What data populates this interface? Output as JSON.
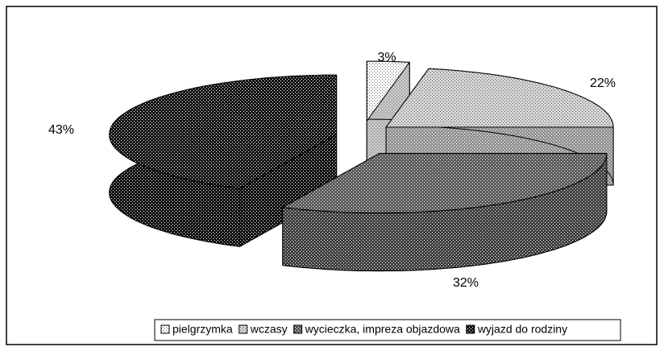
{
  "chart_data": {
    "type": "pie3d",
    "categories": [
      "pielgrzymka",
      "wczasy",
      "wycieczka, impreza objazdowa",
      "wyjazd do rodziny"
    ],
    "values": [
      3,
      22,
      32,
      43
    ],
    "value_labels": [
      "3%",
      "22%",
      "32%",
      "43%"
    ],
    "colors": [
      "#ffffff",
      "#d4d4d4",
      "#5a5a5a",
      "#141414"
    ],
    "legend": "bottom"
  }
}
